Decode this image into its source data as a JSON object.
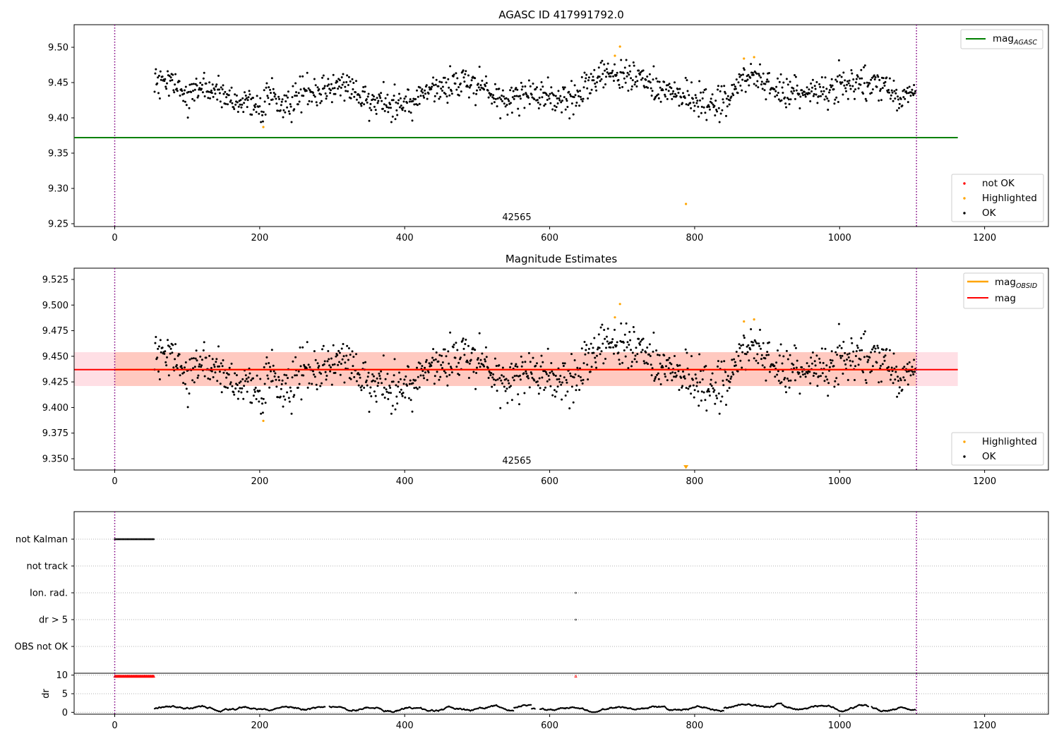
{
  "chart_data": [
    {
      "type": "scatter",
      "title": "AGASC ID 417991792.0",
      "obsid_label": "42565",
      "xlim": [
        -56,
        1288
      ],
      "ylim": [
        9.246,
        9.532
      ],
      "xticks": [
        0,
        200,
        400,
        600,
        800,
        1000,
        1200
      ],
      "yticks": [
        9.25,
        9.3,
        9.35,
        9.4,
        9.45,
        9.5
      ],
      "vlines": [
        0,
        1106
      ],
      "agasc_mag": 9.372,
      "agasc_line_xrange": [
        -56,
        1163
      ],
      "legend_lines": [
        {
          "name": "mag",
          "sub": "AGASC",
          "color": "#008000"
        }
      ],
      "legend_markers": [
        {
          "name": "not OK",
          "color": "#ff0000"
        },
        {
          "name": "Highlighted",
          "color": "#ffa500"
        },
        {
          "name": "OK",
          "color": "#000000"
        }
      ],
      "highlighted_points": [
        [
          205,
          9.387
        ],
        [
          690,
          9.488
        ],
        [
          697,
          9.501
        ],
        [
          868,
          9.484
        ],
        [
          882,
          9.486
        ],
        [
          788,
          9.278
        ]
      ]
    },
    {
      "type": "scatter",
      "title": "Magnitude Estimates",
      "obsid_label": "42565",
      "xlim": [
        -56,
        1288
      ],
      "ylim": [
        9.339,
        9.536
      ],
      "xticks": [
        0,
        200,
        400,
        600,
        800,
        1000,
        1200
      ],
      "yticks": [
        9.35,
        9.375,
        9.4,
        9.425,
        9.45,
        9.475,
        9.5,
        9.525
      ],
      "vlines": [
        0,
        1106
      ],
      "mag": 9.437,
      "mag_obsid": 9.437,
      "band_low": 9.421,
      "band_high": 9.454,
      "band_xrange": [
        -56,
        1163
      ],
      "legend_lines": [
        {
          "name": "mag",
          "sub": "OBSID",
          "color": "#ffa500"
        },
        {
          "name": "mag",
          "sub": "",
          "color": "#ff0000"
        }
      ],
      "legend_markers": [
        {
          "name": "Highlighted",
          "color": "#ffa500"
        },
        {
          "name": "OK",
          "color": "#000000"
        }
      ],
      "highlighted_points": [
        [
          205,
          9.387
        ],
        [
          690,
          9.488
        ],
        [
          697,
          9.501
        ],
        [
          868,
          9.484
        ],
        [
          882,
          9.486
        ]
      ],
      "offscale_marker": [
        788,
        9.342
      ]
    },
    {
      "type": "scatter",
      "title": "",
      "xlim": [
        -56,
        1288
      ],
      "xticks": [
        0,
        200,
        400,
        600,
        800,
        1000,
        1200
      ],
      "categories": [
        "not Kalman",
        "not track",
        "Ion. rad.",
        "dr > 5",
        "OBS not OK"
      ],
      "flag_segments": [
        {
          "category": "not Kalman",
          "x_from": 0,
          "x_to": 54
        },
        {
          "category": "Ion. rad.",
          "x_from": 636,
          "x_to": 636
        },
        {
          "category": "dr > 5",
          "x_from": 636,
          "x_to": 636
        }
      ],
      "dr_label": "dr",
      "dr_ylim": [
        -0.5,
        10.5
      ],
      "dr_yticks": [
        0,
        5,
        10
      ],
      "dr_clipped_segments": [
        [
          0,
          54
        ],
        [
          636,
          636
        ]
      ],
      "vlines": [
        0,
        1106
      ]
    }
  ]
}
